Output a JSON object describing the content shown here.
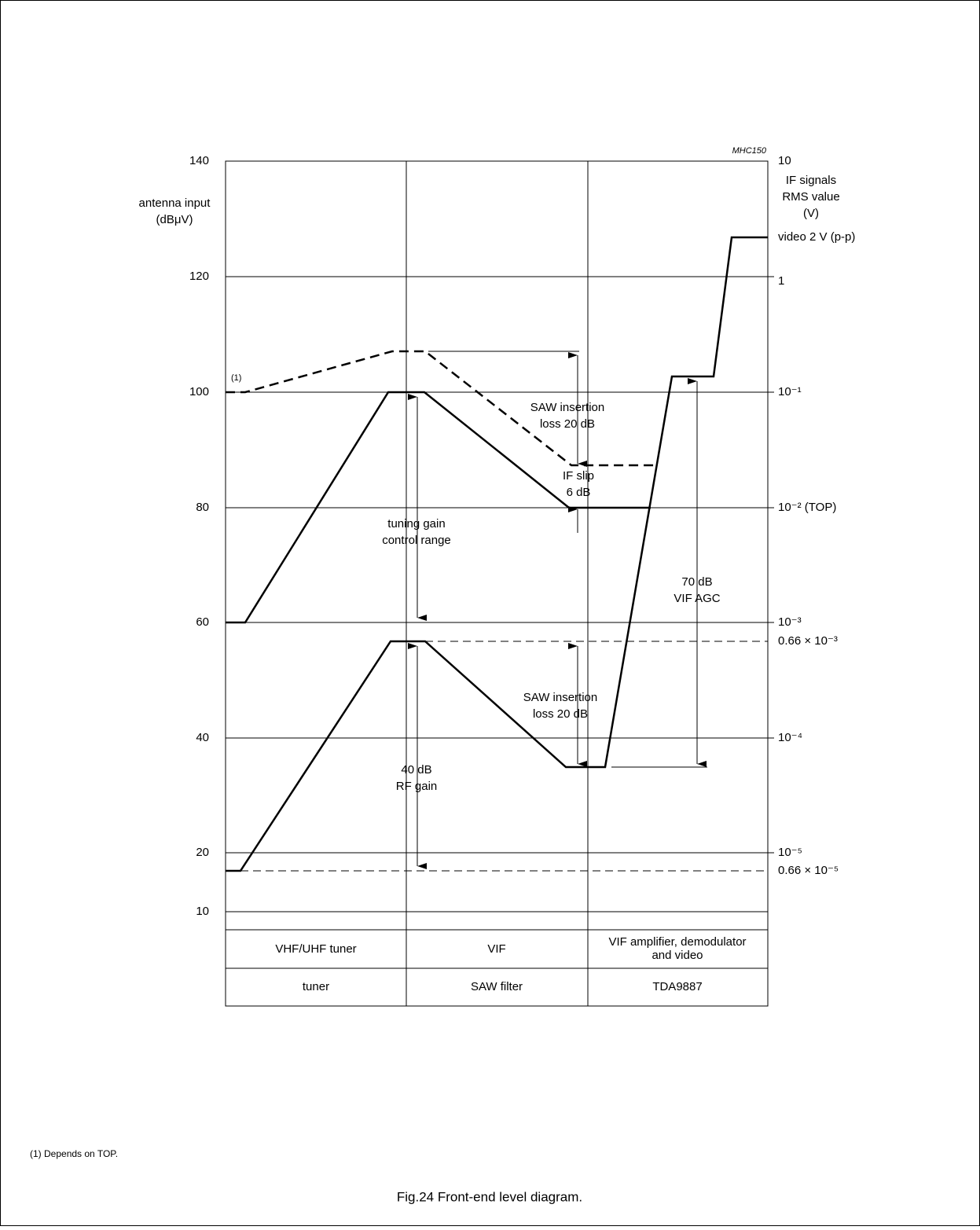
{
  "marker": "MHC150",
  "left_axis": {
    "label": [
      "antenna input",
      "(dBμV)"
    ],
    "ticks": [
      "140",
      "120",
      "100",
      "80",
      "60",
      "40",
      "20",
      "10"
    ]
  },
  "right_axis": {
    "label": [
      "IF signals",
      "RMS value",
      "(V)"
    ],
    "ticks": [
      "10",
      "video 2 V (p-p)",
      "1",
      "10⁻¹",
      "10⁻² (TOP)",
      "10⁻³",
      "0.66 × 10⁻³",
      "10⁻⁴",
      "10⁻⁵",
      "0.66 × 10⁻⁵"
    ]
  },
  "annotations": {
    "ref": "(1)",
    "saw_upper": [
      "SAW insertion",
      "loss 20 dB"
    ],
    "if_slip": [
      "IF slip",
      "6 dB"
    ],
    "tuning": [
      "tuning gain",
      "control range"
    ],
    "rf": [
      "40 dB",
      "RF gain"
    ],
    "saw_lower": [
      "SAW insertion",
      "loss 20 dB"
    ],
    "agc": [
      "70 dB",
      "VIF AGC"
    ]
  },
  "table": {
    "rows": [
      [
        "VHF/UHF tuner",
        "VIF",
        [
          "VIF amplifier, demodulator",
          "and video"
        ]
      ],
      [
        "tuner",
        "SAW filter",
        "TDA9887"
      ]
    ]
  },
  "footnote": "(1)  Depends on TOP.",
  "caption": "Fig.24  Front-end level diagram."
}
